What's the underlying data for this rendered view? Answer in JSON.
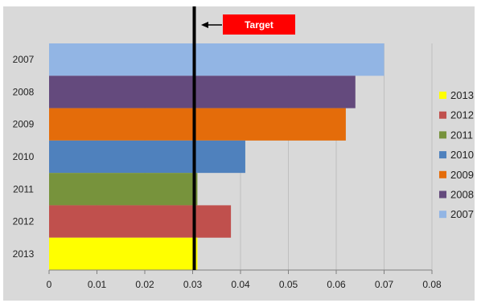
{
  "chart_data": {
    "type": "bar",
    "orientation": "horizontal",
    "categories": [
      "2007",
      "2008",
      "2009",
      "2010",
      "2011",
      "2012",
      "2013"
    ],
    "values": [
      0.07,
      0.064,
      0.062,
      0.041,
      0.031,
      0.038,
      0.031
    ],
    "colors": [
      "#92b5e4",
      "#644a7d",
      "#e46c0a",
      "#4f81bd",
      "#77933c",
      "#c0504d",
      "#ffff00"
    ],
    "xlim": [
      0,
      0.08
    ],
    "xticks": [
      "0",
      "0.01",
      "0.02",
      "0.03",
      "0.04",
      "0.05",
      "0.06",
      "0.07",
      "0.08"
    ],
    "xtick_values": [
      0,
      0.01,
      0.02,
      0.03,
      0.04,
      0.05,
      0.06,
      0.07,
      0.08
    ],
    "grid": true,
    "background": "#d9d9d9",
    "target": {
      "value": 0.03,
      "label": "Target",
      "label_color": "#ff0000"
    },
    "legend": {
      "position": "right",
      "entries": [
        {
          "label": "2013",
          "color": "#ffff00"
        },
        {
          "label": "2012",
          "color": "#c0504d"
        },
        {
          "label": "2011",
          "color": "#77933c"
        },
        {
          "label": "2010",
          "color": "#4f81bd"
        },
        {
          "label": "2009",
          "color": "#e46c0a"
        },
        {
          "label": "2008",
          "color": "#644a7d"
        },
        {
          "label": "2007",
          "color": "#92b5e4"
        }
      ]
    }
  }
}
